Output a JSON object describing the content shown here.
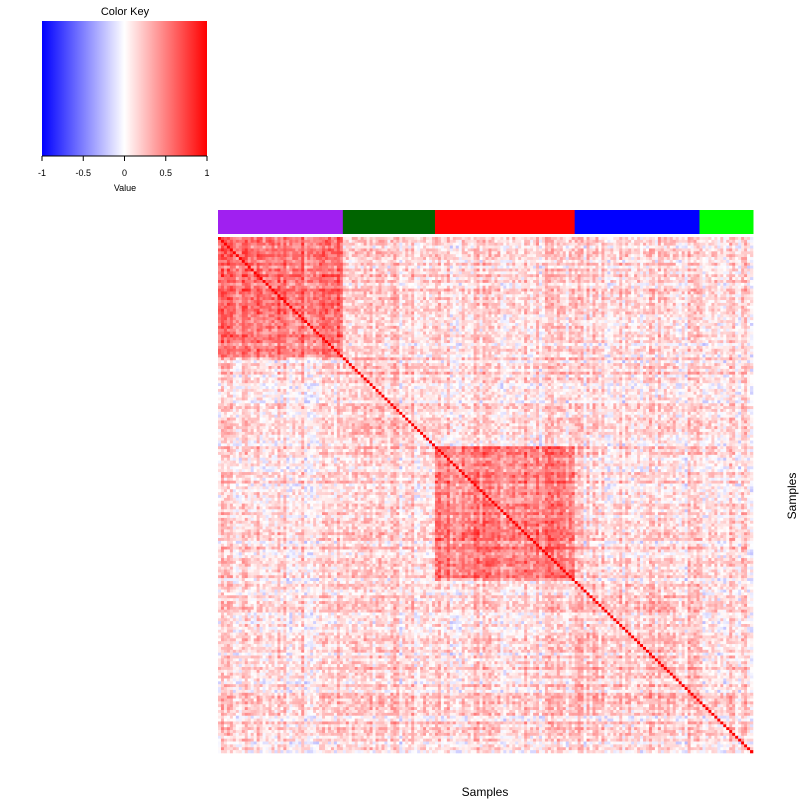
{
  "chart_data": {
    "type": "heatmap",
    "xlabel": "Samples",
    "ylabel": "Samples",
    "n_samples": 180,
    "groups": [
      {
        "color": "#a020f0",
        "count": 42
      },
      {
        "color": "#006400",
        "count": 31
      },
      {
        "color": "#ff0000",
        "count": 47
      },
      {
        "color": "#0000ff",
        "count": 42
      },
      {
        "color": "#00ff00",
        "count": 18
      }
    ],
    "color_key": {
      "title": "Color Key",
      "label": "Value",
      "range": [
        -1,
        1
      ],
      "ticks": [
        "-1",
        "-0.5",
        "0",
        "0.5",
        "1"
      ],
      "low_color": "#0000ff",
      "mid_color": "#ffffff",
      "high_color": "#ff0000"
    },
    "diagonal_value": 1,
    "within_group_means": [
      0.45,
      0.1,
      0.4,
      0.12,
      0.05
    ],
    "between_group_mean": 0.05
  }
}
